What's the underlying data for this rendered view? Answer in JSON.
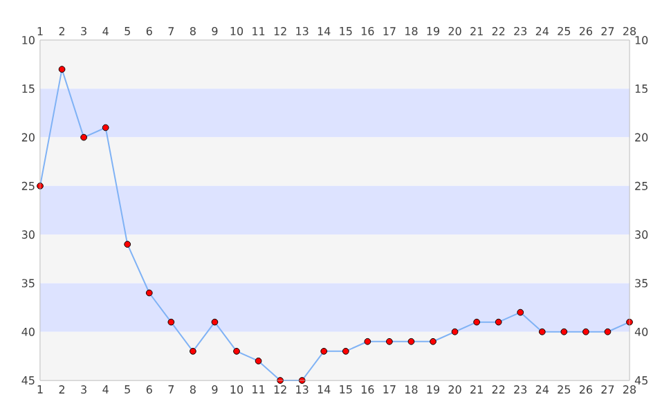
{
  "chart_data": {
    "type": "line",
    "marker": "circle",
    "x": [
      1,
      2,
      3,
      4,
      5,
      6,
      7,
      8,
      9,
      10,
      11,
      12,
      13,
      14,
      15,
      16,
      17,
      18,
      19,
      20,
      21,
      22,
      23,
      24,
      25,
      26,
      27,
      28
    ],
    "series": [
      {
        "color": "#7fb2f5",
        "colors": [
          "#ff0000",
          "#ff0000",
          "#ff0000",
          "#ff0000",
          "#ff0000",
          "#ff0000",
          "#ff0000",
          "#ff0000",
          "#ff0000",
          "#ff0000",
          "#ff0000",
          "#ff0000",
          "#ff0000",
          "#ff0000",
          "#ff0000",
          "#ff0000",
          "#ff0000",
          "#ff0000",
          "#ff0000",
          "#ff0000",
          "#ff0000",
          "#ff0000",
          "#ff0000",
          "#ff0000",
          "#ff0000",
          "#ff0000",
          "#ff0000",
          "#ff0000"
        ],
        "values": [
          25,
          13,
          20,
          19,
          31,
          36,
          39,
          42,
          39,
          42,
          43,
          45,
          45,
          42,
          42,
          41,
          41,
          41,
          41,
          40,
          39,
          39,
          38,
          40,
          40,
          40,
          40,
          39
        ]
      }
    ],
    "xlim": [
      1,
      28
    ],
    "xticks": [
      1,
      2,
      3,
      4,
      5,
      6,
      7,
      8,
      9,
      10,
      11,
      12,
      13,
      14,
      15,
      16,
      17,
      18,
      19,
      20,
      21,
      22,
      23,
      24,
      25,
      26,
      27,
      28
    ],
    "x2lim": [
      1,
      28
    ],
    "x2ticks": [
      1,
      2,
      3,
      4,
      5,
      6,
      7,
      8,
      9,
      10,
      11,
      12,
      13,
      14,
      15,
      16,
      17,
      18,
      19,
      20,
      21,
      22,
      23,
      24,
      25,
      26,
      27,
      28
    ],
    "ylim": [
      45,
      10
    ],
    "yticks": [
      10,
      15,
      20,
      25,
      30,
      35,
      40,
      45
    ],
    "y2lim": [
      45,
      10
    ],
    "y2ticks": [
      10,
      15,
      20,
      25,
      30,
      35,
      40,
      45
    ],
    "bands": [
      {
        "axis": "y",
        "from": 10,
        "to": 15,
        "color": "#f5f5f5"
      },
      {
        "axis": "y",
        "from": 15,
        "to": 20,
        "color": "#dde3ff"
      },
      {
        "axis": "y",
        "from": 20,
        "to": 25,
        "color": "#f5f5f5"
      },
      {
        "axis": "y",
        "from": 25,
        "to": 30,
        "color": "#dde3ff"
      },
      {
        "axis": "y",
        "from": 30,
        "to": 35,
        "color": "#f5f5f5"
      },
      {
        "axis": "y",
        "from": 35,
        "to": 40,
        "color": "#dde3ff"
      },
      {
        "axis": "y",
        "from": 40,
        "to": 45,
        "color": "#f5f5f5"
      }
    ]
  }
}
